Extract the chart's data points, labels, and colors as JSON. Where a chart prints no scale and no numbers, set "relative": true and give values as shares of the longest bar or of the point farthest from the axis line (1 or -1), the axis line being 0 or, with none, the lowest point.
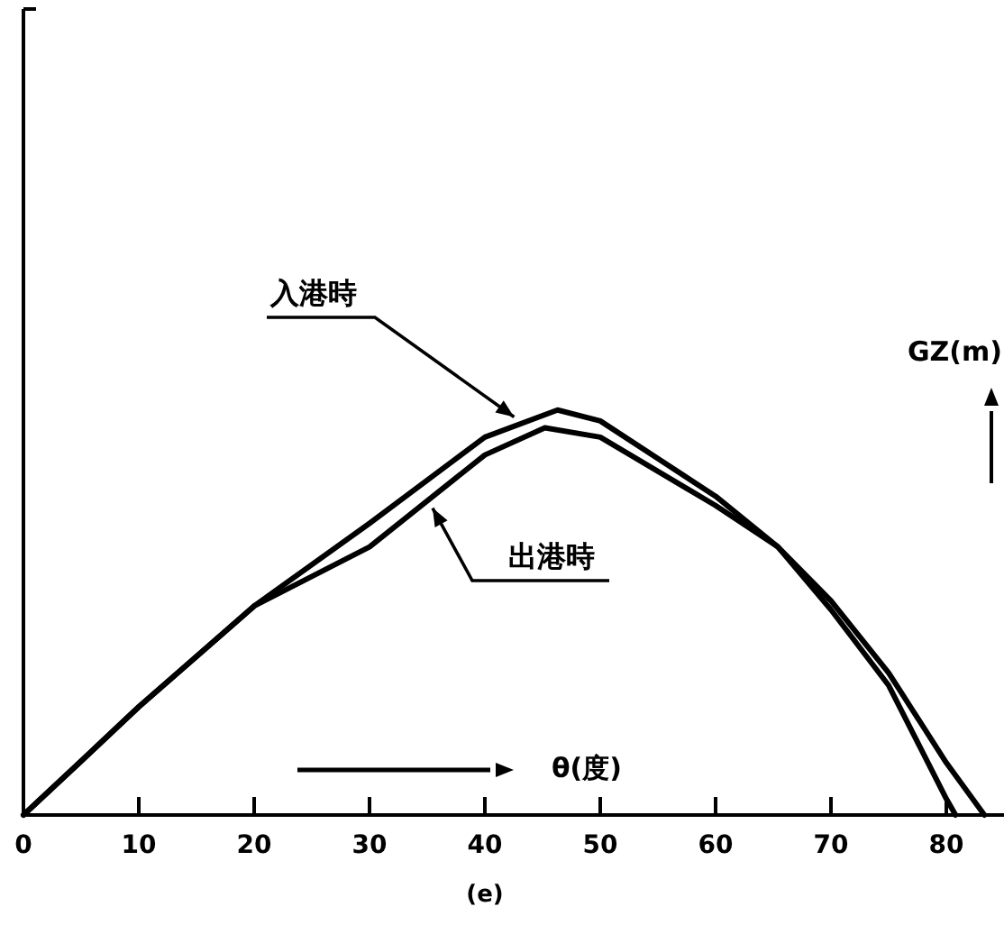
{
  "chart_data": {
    "type": "line",
    "relative": true,
    "xlabel": "θ(度)",
    "ylabel": "GZ(m)",
    "annotations": [
      "(e)"
    ],
    "xlim": [
      0,
      85
    ],
    "xticks": [
      0,
      10,
      20,
      30,
      40,
      50,
      60,
      70,
      80
    ],
    "grid": false,
    "marker": "none",
    "line_style": "solid",
    "series": [
      {
        "name": "入港時",
        "color": "#000000",
        "x": [
          0,
          5,
          10,
          20,
          30,
          40,
          46.3,
          50,
          60,
          65.4,
          70,
          75,
          80,
          83.3
        ],
        "values": [
          0,
          0.133,
          0.267,
          0.516,
          0.72,
          0.933,
          1,
          0.973,
          0.787,
          0.662,
          0.529,
          0.351,
          0.129,
          0
        ]
      },
      {
        "name": "出港時",
        "color": "#000000",
        "x": [
          0,
          5,
          10,
          20,
          30,
          40,
          45.2,
          50,
          60,
          65.4,
          70,
          75,
          80,
          80.8
        ],
        "values": [
          0,
          0.133,
          0.267,
          0.516,
          0.662,
          0.889,
          0.956,
          0.933,
          0.764,
          0.662,
          0.507,
          0.32,
          0.04,
          0
        ]
      }
    ]
  }
}
